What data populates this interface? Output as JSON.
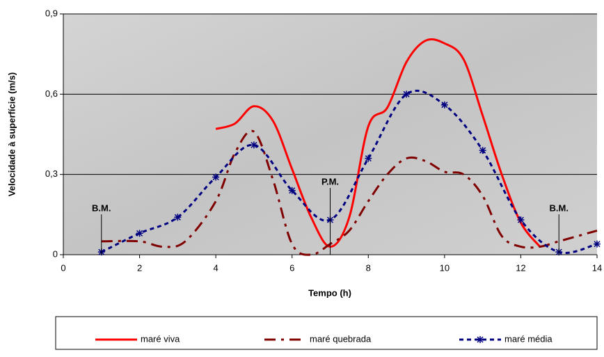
{
  "chart_data": {
    "type": "line",
    "xlabel": "Tempo (h)",
    "ylabel": "Velocidade à superfície (m/s)",
    "xlim": [
      0,
      14
    ],
    "xticks": [
      0,
      2,
      4,
      6,
      8,
      10,
      12,
      14
    ],
    "ylim": [
      0,
      0.9
    ],
    "yticks": [
      {
        "value": 0,
        "label": "0"
      },
      {
        "value": 0.3,
        "label": "0,3"
      },
      {
        "value": 0.6,
        "label": "0,6"
      },
      {
        "value": 0.9,
        "label": "0,9"
      }
    ],
    "grid": true,
    "legend": "bottom",
    "annotations": [
      {
        "text": "B.M.",
        "x": 1
      },
      {
        "text": "P.M.",
        "x": 7
      },
      {
        "text": "B.M.",
        "x": 13
      }
    ],
    "series": [
      {
        "name": "maré viva",
        "color": "#ff0000",
        "style": "solid",
        "x": [
          4,
          4.5,
          5,
          5.5,
          6,
          6.5,
          7,
          7.5,
          8,
          8.5,
          9,
          9.5,
          10,
          10.5,
          11,
          11.5,
          12,
          12.5
        ],
        "values": [
          0.47,
          0.49,
          0.555,
          0.5,
          0.32,
          0.14,
          0.03,
          0.14,
          0.48,
          0.55,
          0.72,
          0.8,
          0.79,
          0.73,
          0.52,
          0.3,
          0.12,
          0.03
        ]
      },
      {
        "name": "maré quebrada",
        "color": "#800000",
        "style": "dashed",
        "x": [
          1,
          2,
          2.6,
          3.2,
          4,
          4.5,
          5,
          5.5,
          6,
          6.5,
          7,
          7.5,
          8,
          8.5,
          9,
          9.5,
          10,
          10.5,
          11,
          11.5,
          12,
          12.5,
          13,
          14
        ],
        "values": [
          0.05,
          0.05,
          0.03,
          0.05,
          0.2,
          0.38,
          0.46,
          0.28,
          0.04,
          0.0,
          0.04,
          0.09,
          0.2,
          0.3,
          0.36,
          0.35,
          0.31,
          0.3,
          0.22,
          0.07,
          0.03,
          0.03,
          0.05,
          0.09
        ]
      },
      {
        "name": "maré média",
        "color": "#000080",
        "style": "dotted",
        "marker": "asterisk",
        "x": [
          1,
          2,
          3,
          4,
          5,
          6,
          7,
          8,
          9,
          10,
          11,
          12,
          13,
          14
        ],
        "values": [
          0.01,
          0.08,
          0.14,
          0.29,
          0.41,
          0.24,
          0.13,
          0.36,
          0.6,
          0.56,
          0.39,
          0.13,
          0.01,
          0.04
        ]
      }
    ]
  }
}
